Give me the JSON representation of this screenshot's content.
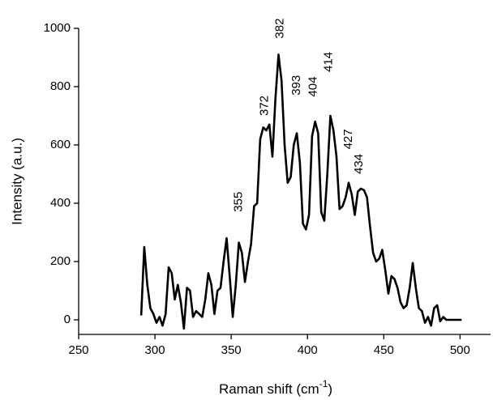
{
  "chart_data": {
    "type": "line",
    "xlabel": "Raman shift (cm",
    "xlabel_sup": "-1",
    "xlabel_end": ")",
    "ylabel": "Intensity (a.u.)",
    "color": "#000000",
    "xlim": [
      250,
      520
    ],
    "xticks": [
      250,
      300,
      350,
      400,
      450,
      500
    ],
    "ylim": [
      -50,
      1000
    ],
    "yticks": [
      0,
      200,
      400,
      600,
      800,
      1000
    ],
    "x": [
      291,
      293,
      295,
      297,
      299,
      301,
      303,
      305,
      307,
      309,
      311,
      313,
      315,
      317,
      319,
      321,
      323,
      325,
      327,
      329,
      331,
      333,
      335,
      337,
      339,
      341,
      343,
      345,
      347,
      349,
      351,
      353,
      355,
      357,
      359,
      361,
      363,
      365,
      367,
      369,
      371,
      373,
      375,
      377,
      379,
      381,
      383,
      385,
      387,
      389,
      391,
      393,
      395,
      397,
      399,
      401,
      403,
      405,
      407,
      409,
      411,
      413,
      415,
      417,
      419,
      421,
      423,
      425,
      427,
      429,
      431,
      433,
      435,
      437,
      439,
      441,
      443,
      445,
      447,
      449,
      451,
      453,
      455,
      457,
      459,
      461,
      463,
      465,
      467,
      469,
      471,
      473,
      475,
      477,
      479,
      481,
      483,
      485,
      487,
      489,
      491,
      493,
      495,
      497,
      499,
      501
    ],
    "values": [
      15,
      250,
      120,
      40,
      20,
      -10,
      10,
      -20,
      20,
      180,
      160,
      70,
      120,
      60,
      -30,
      110,
      100,
      10,
      30,
      20,
      10,
      70,
      160,
      120,
      20,
      100,
      110,
      200,
      280,
      150,
      10,
      120,
      265,
      230,
      130,
      200,
      260,
      390,
      400,
      620,
      660,
      650,
      670,
      560,
      760,
      910,
      820,
      600,
      470,
      490,
      600,
      640,
      540,
      330,
      310,
      360,
      630,
      680,
      640,
      370,
      340,
      500,
      700,
      650,
      560,
      380,
      390,
      420,
      470,
      430,
      360,
      440,
      450,
      445,
      420,
      320,
      230,
      200,
      210,
      240,
      170,
      90,
      150,
      140,
      110,
      60,
      40,
      50,
      110,
      195,
      110,
      40,
      30,
      -10,
      10,
      -20,
      40,
      50,
      -5,
      10,
      0,
      0,
      0,
      0,
      0,
      0
    ],
    "annotations": [
      {
        "text": "355",
        "x": 355,
        "y": 370
      },
      {
        "text": "372",
        "x": 372,
        "y": 700
      },
      {
        "text": "382",
        "x": 382,
        "y": 965
      },
      {
        "text": "393",
        "x": 393,
        "y": 770
      },
      {
        "text": "404",
        "x": 404,
        "y": 765
      },
      {
        "text": "414",
        "x": 414,
        "y": 850
      },
      {
        "text": "427",
        "x": 427,
        "y": 585
      },
      {
        "text": "434",
        "x": 434,
        "y": 500
      }
    ]
  }
}
